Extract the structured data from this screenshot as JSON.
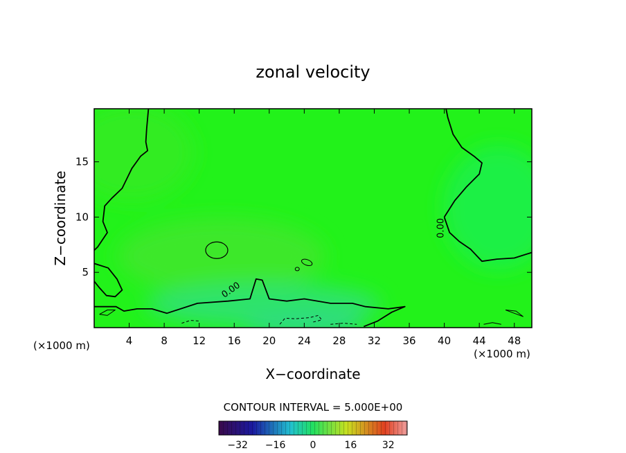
{
  "chart_data": {
    "type": "heatmap",
    "title": "zonal velocity",
    "xlabel": "X−coordinate",
    "ylabel": "Z−coordinate",
    "x_unit_left": "(×1000 m)",
    "x_unit_right": "(×1000 m)",
    "xlim": [
      0,
      50
    ],
    "ylim": [
      0,
      19.8
    ],
    "x_ticks": [
      4,
      8,
      12,
      16,
      20,
      24,
      28,
      32,
      36,
      40,
      44,
      48
    ],
    "y_ticks": [
      5,
      10,
      15
    ],
    "contour_interval_label": "CONTOUR INTERVAL = 5.000E+00",
    "colorbar": {
      "range": [
        -40,
        40
      ],
      "ticks": [
        -32,
        -16,
        0,
        16,
        32
      ],
      "colors": {
        "min": "#3a0a4a",
        "low": "#1a1aa0",
        "mid_low": "#22c0d0",
        "zero": "#22e060",
        "mid_high": "#c8e020",
        "high": "#e04020",
        "max": "#f0a0a0"
      }
    },
    "field_colors": {
      "background": "#22f21a",
      "upper_left": "#33ec20",
      "left_mid": "#3ee82c",
      "lower_center": "#2ee36a",
      "lower_band": "#2ed888",
      "right_upper": "#1ef044"
    },
    "contour_labels": [
      "0.00",
      "0.00"
    ],
    "zero_contour_right": [
      [
        40.0,
        10.0
      ],
      [
        41.2,
        11.5
      ],
      [
        42.5,
        12.7
      ],
      [
        44.0,
        13.9
      ],
      [
        44.3,
        14.9
      ],
      [
        43.4,
        15.5
      ],
      [
        42.0,
        16.3
      ],
      [
        41.0,
        17.5
      ],
      [
        40.4,
        19.0
      ],
      [
        40.2,
        19.8
      ]
    ],
    "zero_contour_right_lower": [
      [
        40.0,
        10.0
      ],
      [
        40.6,
        8.6
      ],
      [
        41.7,
        7.8
      ],
      [
        43.0,
        7.1
      ],
      [
        44.3,
        6.0
      ],
      [
        46.0,
        6.2
      ],
      [
        48.0,
        6.3
      ],
      [
        50.0,
        6.8
      ]
    ],
    "zero_contour_left": [
      [
        6.2,
        19.8
      ],
      [
        6.0,
        18.0
      ],
      [
        5.9,
        16.8
      ],
      [
        6.1,
        16.0
      ],
      [
        5.3,
        15.5
      ],
      [
        4.3,
        14.4
      ],
      [
        3.2,
        12.6
      ],
      [
        2.0,
        11.7
      ],
      [
        1.2,
        11.0
      ],
      [
        1.0,
        9.6
      ],
      [
        1.5,
        8.6
      ],
      [
        0.4,
        7.3
      ],
      [
        0.0,
        7.0
      ]
    ],
    "zero_contour_left_lobe": [
      [
        0.0,
        5.8
      ],
      [
        1.6,
        5.4
      ],
      [
        2.6,
        4.4
      ],
      [
        3.2,
        3.4
      ],
      [
        2.4,
        2.8
      ],
      [
        1.4,
        2.9
      ],
      [
        0.6,
        3.6
      ],
      [
        0.0,
        4.2
      ]
    ],
    "zero_contour_bottom": [
      [
        0.0,
        1.9
      ],
      [
        2.5,
        1.9
      ],
      [
        3.4,
        1.5
      ],
      [
        4.9,
        1.7
      ],
      [
        6.6,
        1.7
      ],
      [
        8.3,
        1.3
      ],
      [
        11.8,
        2.2
      ],
      [
        15.3,
        2.4
      ],
      [
        17.8,
        2.6
      ],
      [
        18.5,
        4.4
      ],
      [
        19.2,
        4.3
      ],
      [
        20.0,
        2.6
      ],
      [
        22.0,
        2.4
      ],
      [
        24.0,
        2.6
      ],
      [
        27.0,
        2.2
      ],
      [
        29.5,
        2.2
      ],
      [
        31.0,
        1.9
      ],
      [
        33.6,
        1.7
      ],
      [
        35.5,
        1.9
      ],
      [
        34.0,
        1.4
      ],
      [
        32.4,
        0.6
      ],
      [
        30.8,
        0.1
      ]
    ]
  }
}
